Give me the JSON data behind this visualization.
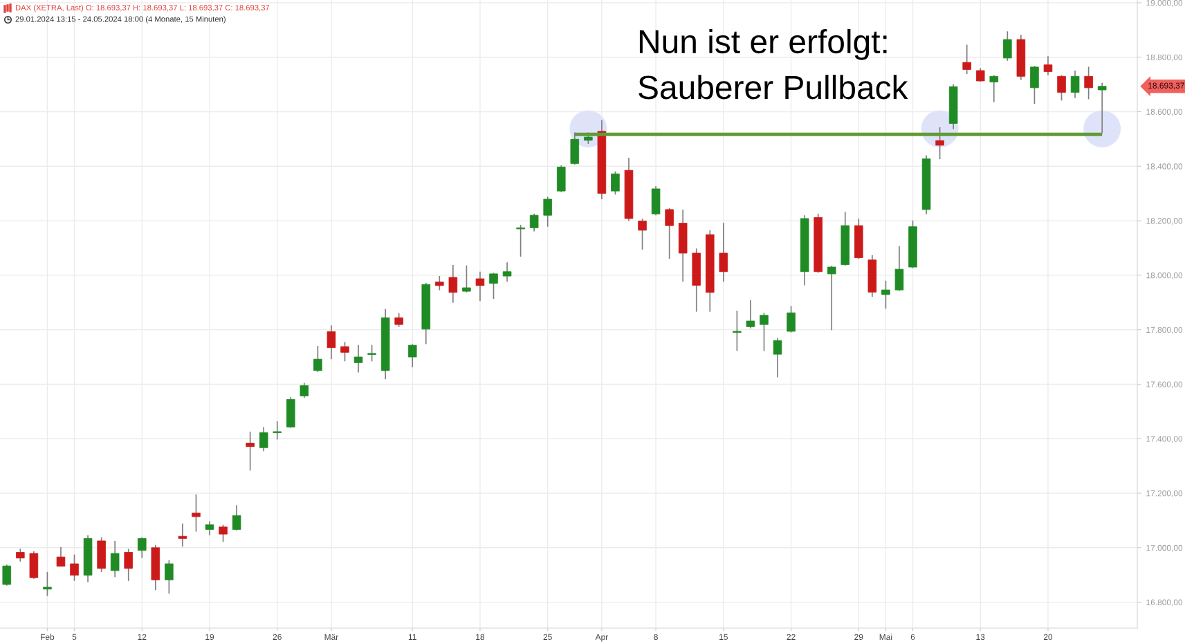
{
  "chart_data": {
    "type": "candlestick",
    "title": "DAX (XETRA, Last) O: 18.693,37 H: 18.693,37 L: 18.693,37 C: 18.693,37",
    "subtitle": "29.01.2024 13:15 - 24.05.2024 18:00 (4 Monate, 15 Minuten)",
    "categories": [
      null,
      null,
      null,
      "Feb",
      null,
      "5",
      null,
      null,
      null,
      null,
      "12",
      null,
      null,
      null,
      null,
      "19",
      null,
      null,
      null,
      null,
      "26",
      null,
      null,
      null,
      "Mär",
      null,
      null,
      null,
      null,
      null,
      "11",
      null,
      null,
      null,
      null,
      "18",
      null,
      null,
      null,
      null,
      "25",
      null,
      null,
      null,
      "Apr",
      null,
      null,
      null,
      "8",
      null,
      null,
      null,
      null,
      "15",
      null,
      null,
      null,
      null,
      "22",
      null,
      null,
      null,
      null,
      "29",
      null,
      "Mai",
      null,
      "6",
      null,
      null,
      null,
      null,
      "13",
      null,
      null,
      null,
      null,
      "20",
      null,
      null,
      null,
      null
    ],
    "ohlc": [
      [
        16865,
        16938,
        16861,
        16933
      ],
      [
        16983,
        16996,
        16949,
        16962
      ],
      [
        16979,
        16987,
        16886,
        16890
      ],
      [
        16848,
        16911,
        16823,
        16855
      ],
      [
        16966,
        17002,
        16932,
        16932
      ],
      [
        16941,
        16975,
        16878,
        16899
      ],
      [
        16899,
        17046,
        16873,
        17034
      ],
      [
        17025,
        17038,
        16911,
        16924
      ],
      [
        16916,
        17025,
        16892,
        16979
      ],
      [
        16983,
        16996,
        16878,
        16924
      ],
      [
        16990,
        17038,
        16962,
        17034
      ],
      [
        17000,
        17010,
        16844,
        16882
      ],
      [
        16882,
        16954,
        16831,
        16941
      ],
      [
        17042,
        17089,
        17004,
        17034
      ],
      [
        17127,
        17196,
        17059,
        17114
      ],
      [
        17067,
        17097,
        17046,
        17084
      ],
      [
        17076,
        17084,
        17021,
        17050
      ],
      [
        17067,
        17156,
        17063,
        17118
      ],
      [
        17384,
        17426,
        17283,
        17371
      ],
      [
        17367,
        17443,
        17354,
        17422
      ],
      [
        17422,
        17464,
        17397,
        17426
      ],
      [
        17443,
        17553,
        17440,
        17544
      ],
      [
        17557,
        17605,
        17550,
        17595
      ],
      [
        17650,
        17741,
        17645,
        17692
      ],
      [
        17793,
        17816,
        17692,
        17734
      ],
      [
        17738,
        17755,
        17684,
        17717
      ],
      [
        17679,
        17744,
        17643,
        17700
      ],
      [
        17709,
        17744,
        17684,
        17713
      ],
      [
        17650,
        17876,
        17618,
        17844
      ],
      [
        17844,
        17861,
        17810,
        17819
      ],
      [
        17700,
        17747,
        17662,
        17743
      ],
      [
        17802,
        17972,
        17747,
        17966
      ],
      [
        17975,
        17997,
        17945,
        17962
      ],
      [
        17992,
        18038,
        17899,
        17937
      ],
      [
        17941,
        18036,
        17937,
        17954
      ],
      [
        17987,
        18013,
        17905,
        17962
      ],
      [
        17970,
        18009,
        17913,
        18005
      ],
      [
        17997,
        18047,
        17976,
        18013
      ],
      [
        18170,
        18185,
        18068,
        18174
      ],
      [
        18174,
        18226,
        18161,
        18220
      ],
      [
        18220,
        18288,
        18178,
        18279
      ],
      [
        18309,
        18403,
        18305,
        18397
      ],
      [
        18410,
        18524,
        18406,
        18499
      ],
      [
        18495,
        18524,
        18482,
        18507
      ],
      [
        18528,
        18569,
        18279,
        18300
      ],
      [
        18309,
        18381,
        18296,
        18372
      ],
      [
        18385,
        18431,
        18199,
        18208
      ],
      [
        18199,
        18208,
        18094,
        18165
      ],
      [
        18225,
        18327,
        18220,
        18317
      ],
      [
        18241,
        18246,
        18060,
        18182
      ],
      [
        18191,
        18241,
        17976,
        18081
      ],
      [
        18081,
        18098,
        17866,
        17963
      ],
      [
        18149,
        18165,
        17866,
        17937
      ],
      [
        18081,
        18192,
        17976,
        18013
      ],
      [
        17790,
        17870,
        17722,
        17794
      ],
      [
        17811,
        17908,
        17805,
        17832
      ],
      [
        17819,
        17862,
        17722,
        17853
      ],
      [
        17710,
        17769,
        17625,
        17760
      ],
      [
        17794,
        17887,
        17790,
        17862
      ],
      [
        18013,
        18220,
        17963,
        18208
      ],
      [
        18212,
        18226,
        18009,
        18013
      ],
      [
        18005,
        18035,
        17798,
        18030
      ],
      [
        18039,
        18233,
        18035,
        18182
      ],
      [
        18182,
        18208,
        18060,
        18064
      ],
      [
        18056,
        18073,
        17921,
        17938
      ],
      [
        17929,
        17980,
        17877,
        17946
      ],
      [
        17946,
        18106,
        17942,
        18022
      ],
      [
        18030,
        18201,
        18026,
        18178
      ],
      [
        18241,
        18440,
        18224,
        18427
      ],
      [
        18494,
        18543,
        18426,
        18477
      ],
      [
        18557,
        18700,
        18536,
        18692
      ],
      [
        18781,
        18846,
        18738,
        18755
      ],
      [
        18751,
        18760,
        18710,
        18713
      ],
      [
        18709,
        18734,
        18635,
        18730
      ],
      [
        18797,
        18895,
        18787,
        18865
      ],
      [
        18865,
        18882,
        18717,
        18730
      ],
      [
        18688,
        18768,
        18629,
        18764
      ],
      [
        18772,
        18804,
        18734,
        18747
      ],
      [
        18730,
        18734,
        18641,
        18671
      ],
      [
        18671,
        18751,
        18650,
        18730
      ],
      [
        18730,
        18765,
        18646,
        18688
      ],
      [
        18680,
        18706,
        18521,
        18693.37
      ]
    ],
    "colors": [
      "#1f8b24",
      "#cc1a1a",
      "#cc1a1a",
      "#1f8b24",
      "#cc1a1a",
      "#cc1a1a",
      "#1f8b24",
      "#cc1a1a",
      "#1f8b24",
      "#cc1a1a",
      "#1f8b24",
      "#cc1a1a",
      "#1f8b24",
      "#cc1a1a",
      "#cc1a1a",
      "#1f8b24",
      "#cc1a1a",
      "#1f8b24",
      "#cc1a1a",
      "#1f8b24",
      "#1f8b24",
      "#1f8b24",
      "#1f8b24",
      "#1f8b24",
      "#cc1a1a",
      "#cc1a1a",
      "#1f8b24",
      "#1f8b24",
      "#1f8b24",
      "#cc1a1a",
      "#1f8b24",
      "#1f8b24",
      "#cc1a1a",
      "#cc1a1a",
      "#1f8b24",
      "#cc1a1a",
      "#1f8b24",
      "#1f8b24",
      "#1f8b24",
      "#1f8b24",
      "#1f8b24",
      "#1f8b24",
      "#1f8b24",
      "#1f8b24",
      "#cc1a1a",
      "#1f8b24",
      "#cc1a1a",
      "#cc1a1a",
      "#1f8b24",
      "#cc1a1a",
      "#cc1a1a",
      "#cc1a1a",
      "#cc1a1a",
      "#cc1a1a",
      "#1f8b24",
      "#1f8b24",
      "#1f8b24",
      "#1f8b24",
      "#1f8b24",
      "#1f8b24",
      "#cc1a1a",
      "#1f8b24",
      "#1f8b24",
      "#cc1a1a",
      "#cc1a1a",
      "#1f8b24",
      "#1f8b24",
      "#1f8b24",
      "#1f8b24",
      "#cc1a1a",
      "#1f8b24",
      "#cc1a1a",
      "#cc1a1a",
      "#1f8b24",
      "#1f8b24",
      "#cc1a1a",
      "#1f8b24",
      "#cc1a1a",
      "#cc1a1a",
      "#1f8b24",
      "#cc1a1a",
      "#1f8b24"
    ],
    "series": [
      {
        "type": "scatter",
        "color": "#dfe3fa",
        "marker": "circle",
        "values": [
          null,
          null,
          null,
          null,
          null,
          null,
          null,
          null,
          null,
          null,
          null,
          null,
          null,
          null,
          null,
          null,
          null,
          null,
          null,
          null,
          null,
          null,
          null,
          null,
          null,
          null,
          null,
          null,
          null,
          null,
          null,
          null,
          null,
          null,
          null,
          null,
          null,
          null,
          null,
          null,
          null,
          null,
          null,
          18537,
          null,
          null,
          null,
          null,
          null,
          null,
          null,
          null,
          null,
          null,
          null,
          null,
          null,
          null,
          null,
          null,
          null,
          null,
          null,
          null,
          null,
          null,
          null,
          null,
          null,
          18537,
          null,
          null,
          null,
          null,
          null,
          null,
          null,
          null,
          null,
          null,
          null,
          18537
        ]
      },
      {
        "type": "line",
        "color": "#619b36",
        "line_style": "solid",
        "values": [
          null,
          null,
          null,
          null,
          null,
          null,
          null,
          null,
          null,
          null,
          null,
          null,
          null,
          null,
          null,
          null,
          null,
          null,
          null,
          null,
          null,
          null,
          null,
          null,
          null,
          null,
          null,
          null,
          null,
          null,
          null,
          null,
          null,
          null,
          null,
          null,
          null,
          null,
          null,
          null,
          null,
          null,
          18517,
          18517,
          18517,
          18517,
          18517,
          18517,
          18517,
          18517,
          18517,
          18517,
          18517,
          18517,
          18517,
          18517,
          18517,
          18517,
          18517,
          18517,
          18517,
          18517,
          18517,
          18517,
          18517,
          18517,
          18517,
          18517,
          18517,
          18517,
          18517,
          18517,
          18517,
          18517,
          18517,
          18517,
          18517,
          18517,
          18517,
          18517,
          18517,
          18517
        ]
      }
    ],
    "ylim": [
      16705,
      19010
    ],
    "yticks": [
      {
        "value": 16800,
        "label": "16.800,00"
      },
      {
        "value": 17000,
        "label": "17.000,00"
      },
      {
        "value": 17200,
        "label": "17.200,00"
      },
      {
        "value": 17400,
        "label": "17.400,00"
      },
      {
        "value": 17600,
        "label": "17.600,00"
      },
      {
        "value": 17800,
        "label": "17.800,00"
      },
      {
        "value": 18000,
        "label": "18.000,00"
      },
      {
        "value": 18200,
        "label": "18.200,00"
      },
      {
        "value": 18400,
        "label": "18.400,00"
      },
      {
        "value": 18600,
        "label": "18.600,00"
      },
      {
        "value": 18800,
        "label": "18.800,00"
      },
      {
        "value": 19000,
        "label": "19.000,00"
      }
    ],
    "grid": true,
    "annotations": [
      "Nun ist er erfolgt:\nSauberer Pullback",
      "18.693,37"
    ]
  }
}
